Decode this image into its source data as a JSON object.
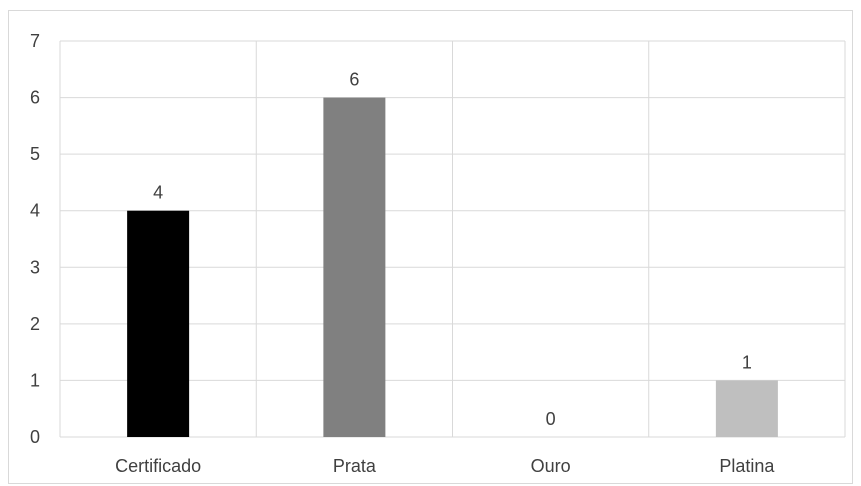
{
  "chart_data": {
    "type": "bar",
    "categories": [
      "Certificado",
      "Prata",
      "Ouro",
      "Platina"
    ],
    "values": [
      4,
      6,
      0,
      1
    ],
    "data_labels": [
      "4",
      "6",
      "0",
      "1"
    ],
    "bar_colors": [
      "#000000",
      "#808080",
      "#a6a6a6",
      "#bfbfbf"
    ],
    "ylim": [
      0,
      7
    ],
    "yticks": [
      "0",
      "1",
      "2",
      "3",
      "4",
      "5",
      "6",
      "7"
    ],
    "grid": true,
    "grid_color": "#d9d9d9",
    "text_color": "#404040",
    "legend": "none"
  }
}
